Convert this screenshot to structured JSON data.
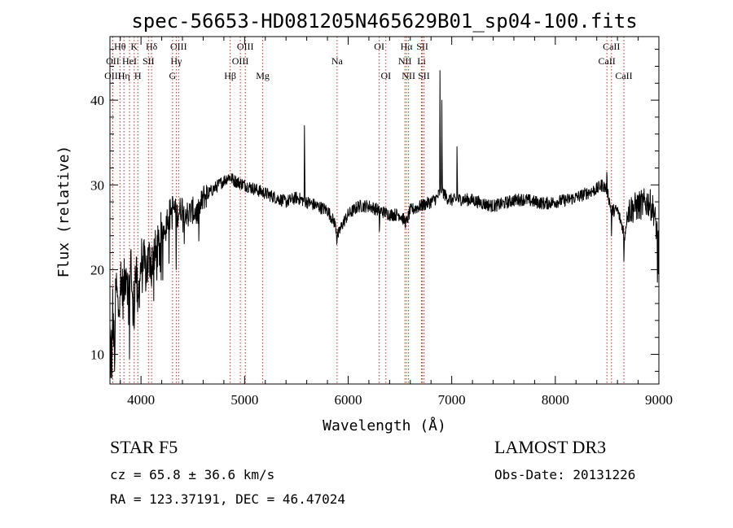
{
  "chart_data": {
    "type": "line",
    "title": "spec-56653-HD081205N465629B01_sp04-100.fits",
    "xlabel": "Wavelength (Å)",
    "ylabel": "Flux (relative)",
    "xlim": [
      3700,
      9000
    ],
    "ylim": [
      6.5,
      47.5
    ],
    "xticks": [
      4000,
      5000,
      6000,
      7000,
      8000,
      9000
    ],
    "yticks": [
      10,
      20,
      30,
      40
    ],
    "lines": [
      {
        "name": "Hθ",
        "wavelength": 3797,
        "row": 0
      },
      {
        "name": "OII",
        "wavelength": 3727,
        "row": 1
      },
      {
        "name": "OIII",
        "wavelength": 3727,
        "row": 2
      },
      {
        "name": "Hη",
        "wavelength": 3835,
        "row": 2
      },
      {
        "name": "K",
        "wavelength": 3934,
        "row": 0
      },
      {
        "name": "HeI",
        "wavelength": 3889,
        "row": 1
      },
      {
        "name": "H",
        "wavelength": 3969,
        "row": 2
      },
      {
        "name": "Hδ",
        "wavelength": 4102,
        "row": 0
      },
      {
        "name": "SII",
        "wavelength": 4072,
        "row": 1
      },
      {
        "name": "OIII",
        "wavelength": 4363,
        "row": 0
      },
      {
        "name": "Hγ",
        "wavelength": 4340,
        "row": 1
      },
      {
        "name": "G",
        "wavelength": 4304,
        "row": 2
      },
      {
        "name": "Hβ",
        "wavelength": 4861,
        "row": 2
      },
      {
        "name": "OIII",
        "wavelength": 5007,
        "row": 0
      },
      {
        "name": "OIII",
        "wavelength": 4959,
        "row": 1
      },
      {
        "name": "Mg",
        "wavelength": 5175,
        "row": 2
      },
      {
        "name": "Na",
        "wavelength": 5893,
        "row": 1
      },
      {
        "name": "OI",
        "wavelength": 6300,
        "row": 0
      },
      {
        "name": "OI",
        "wavelength": 6364,
        "row": 2
      },
      {
        "name": "Hα",
        "wavelength": 6563,
        "row": 0
      },
      {
        "name": "NII",
        "wavelength": 6548,
        "row": 1
      },
      {
        "name": "NII",
        "wavelength": 6583,
        "row": 2
      },
      {
        "name": "SII",
        "wavelength": 6716,
        "row": 0
      },
      {
        "name": "Li",
        "wavelength": 6708,
        "row": 1
      },
      {
        "name": "SII",
        "wavelength": 6731,
        "row": 2
      },
      {
        "name": "CaII",
        "wavelength": 8542,
        "row": 0
      },
      {
        "name": "CaII",
        "wavelength": 8498,
        "row": 1
      },
      {
        "name": "CaII",
        "wavelength": 8662,
        "row": 2
      }
    ],
    "anchors": [
      [
        3700,
        12.5
      ],
      [
        3710,
        9
      ],
      [
        3725,
        16
      ],
      [
        3740,
        11
      ],
      [
        3760,
        18
      ],
      [
        3780,
        15
      ],
      [
        3800,
        19
      ],
      [
        3830,
        17
      ],
      [
        3860,
        21
      ],
      [
        3880,
        16
      ],
      [
        3900,
        23
      ],
      [
        3920,
        14
      ],
      [
        3935,
        18
      ],
      [
        3950,
        20
      ],
      [
        3970,
        16
      ],
      [
        4000,
        21
      ],
      [
        4050,
        20
      ],
      [
        4100,
        22
      ],
      [
        4150,
        21.5
      ],
      [
        4200,
        24
      ],
      [
        4250,
        26
      ],
      [
        4300,
        27.5
      ],
      [
        4350,
        26.5
      ],
      [
        4400,
        27.5
      ],
      [
        4450,
        26.5
      ],
      [
        4500,
        27
      ],
      [
        4550,
        26.5
      ],
      [
        4600,
        28.5
      ],
      [
        4700,
        29.5
      ],
      [
        4800,
        30.5
      ],
      [
        4850,
        31
      ],
      [
        4900,
        30.5
      ],
      [
        5000,
        30
      ],
      [
        5100,
        29.5
      ],
      [
        5200,
        29
      ],
      [
        5300,
        28.5
      ],
      [
        5400,
        28
      ],
      [
        5500,
        28.5
      ],
      [
        5600,
        28
      ],
      [
        5700,
        27.5
      ],
      [
        5800,
        27
      ],
      [
        5870,
        25.5
      ],
      [
        5900,
        24
      ],
      [
        5950,
        25.5
      ],
      [
        6000,
        26.5
      ],
      [
        6100,
        27.5
      ],
      [
        6200,
        27.5
      ],
      [
        6300,
        27
      ],
      [
        6400,
        26.5
      ],
      [
        6500,
        26.5
      ],
      [
        6560,
        25.5
      ],
      [
        6600,
        27
      ],
      [
        6700,
        27.5
      ],
      [
        6800,
        28
      ],
      [
        6860,
        28.5
      ],
      [
        6900,
        29.5
      ],
      [
        6950,
        28.5
      ],
      [
        7000,
        28.2
      ],
      [
        7100,
        28.3
      ],
      [
        7200,
        28.2
      ],
      [
        7300,
        27.8
      ],
      [
        7400,
        27.5
      ],
      [
        7500,
        27.8
      ],
      [
        7600,
        28.2
      ],
      [
        7700,
        28.3
      ],
      [
        7800,
        28
      ],
      [
        7900,
        27.8
      ],
      [
        8000,
        28
      ],
      [
        8100,
        28.2
      ],
      [
        8200,
        28.5
      ],
      [
        8300,
        29
      ],
      [
        8400,
        29.5
      ],
      [
        8450,
        30
      ],
      [
        8500,
        29.5
      ],
      [
        8540,
        27
      ],
      [
        8600,
        27
      ],
      [
        8650,
        25
      ],
      [
        8670,
        24
      ],
      [
        8700,
        27
      ],
      [
        8800,
        27.5
      ],
      [
        8900,
        28
      ],
      [
        8950,
        27
      ],
      [
        9000,
        23
      ]
    ],
    "features": [
      [
        3718,
        7.2
      ],
      [
        3745,
        8
      ],
      [
        3890,
        9.5
      ],
      [
        3934,
        13
      ],
      [
        3968,
        15
      ],
      [
        4102,
        18
      ],
      [
        4340,
        20
      ],
      [
        5579,
        37
      ],
      [
        5890,
        23
      ],
      [
        6300,
        24.5
      ],
      [
        6885,
        43.5
      ],
      [
        6905,
        40
      ],
      [
        7050,
        34.5
      ],
      [
        8498,
        31.5
      ],
      [
        8542,
        24
      ],
      [
        8662,
        21
      ],
      [
        8985,
        18.5
      ],
      [
        8995,
        19.5
      ]
    ],
    "noise_sigma": 0.75
  },
  "footer": {
    "object": "STAR    F5",
    "cz": "cz = 65.8 ± 36.6 km/s",
    "coords": "RA = 123.37191, DEC =  46.47024",
    "survey": "LAMOST DR3",
    "obs_date": "Obs-Date: 20131226"
  }
}
